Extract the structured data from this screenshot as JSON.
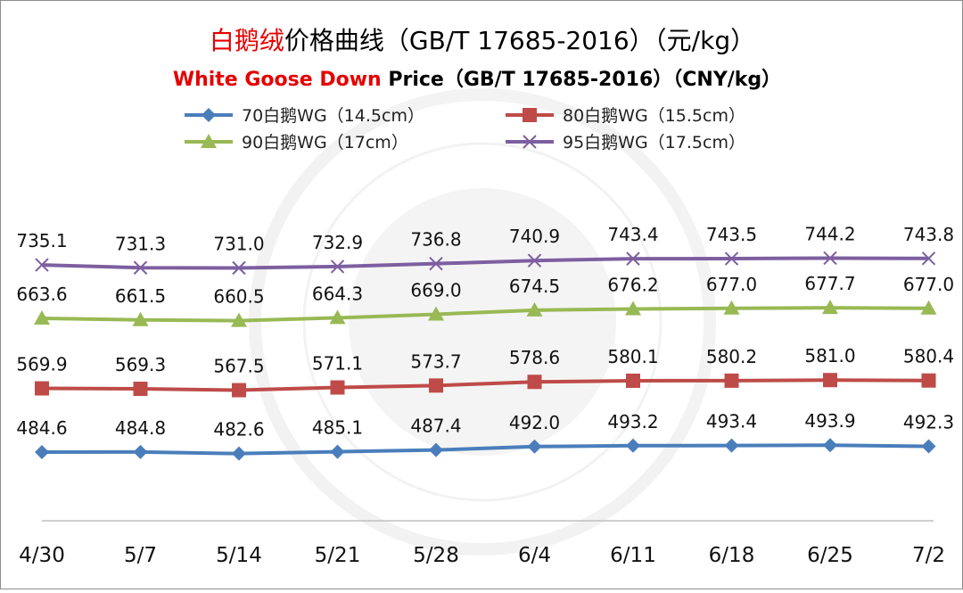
{
  "title_cn": {
    "red": "白鹅绒",
    "rest": "价格曲线（GB/T 17685-2016）（元/kg）"
  },
  "title_en": {
    "red": "White Goose Down",
    "rest": " Price（GB/T 17685-2016）（CNY/kg）"
  },
  "chart_data": {
    "type": "line",
    "categories": [
      "4/30",
      "5/7",
      "5/14",
      "5/21",
      "5/28",
      "6/4",
      "6/11",
      "6/18",
      "6/25",
      "7/2"
    ],
    "ylim": [
      440,
      790
    ],
    "series": [
      {
        "name": "70白鹅WG（14.5cm）",
        "color": "#4a7ebb",
        "marker": "diamond",
        "values": [
          484.6,
          484.8,
          482.6,
          485.1,
          487.4,
          492.0,
          493.2,
          493.4,
          493.9,
          492.3
        ],
        "labels": [
          "484.6",
          "484.8",
          "482.6",
          "485.1",
          "487.4",
          "492.0",
          "493.2",
          "493.4",
          "493.9",
          "492.3"
        ]
      },
      {
        "name": "80白鹅WG（15.5cm）",
        "color": "#be4b48",
        "marker": "square",
        "values": [
          569.9,
          569.3,
          567.5,
          571.1,
          573.7,
          578.6,
          580.1,
          580.2,
          581.0,
          580.4
        ],
        "labels": [
          "569.9",
          "569.3",
          "567.5",
          "571.1",
          "573.7",
          "578.6",
          "580.1",
          "580.2",
          "581.0",
          "580.4"
        ]
      },
      {
        "name": "90白鹅WG（17cm）",
        "color": "#98b954",
        "marker": "triangle",
        "values": [
          663.6,
          661.5,
          660.5,
          664.3,
          669.0,
          674.5,
          676.2,
          677.0,
          677.7,
          677.0
        ],
        "labels": [
          "663.6",
          "661.5",
          "660.5",
          "664.3",
          "669.0",
          "674.5",
          "676.2",
          "677.0",
          "677.7",
          "677.0"
        ]
      },
      {
        "name": "95白鹅WG（17.5cm）",
        "color": "#7d5fa0",
        "marker": "x",
        "values": [
          735.1,
          731.3,
          731.0,
          732.9,
          736.8,
          740.9,
          743.4,
          743.5,
          744.2,
          743.8
        ],
        "labels": [
          "735.1",
          "731.3",
          "731.0",
          "732.9",
          "736.8",
          "740.9",
          "743.4",
          "743.5",
          "744.2",
          "743.8"
        ]
      }
    ]
  }
}
